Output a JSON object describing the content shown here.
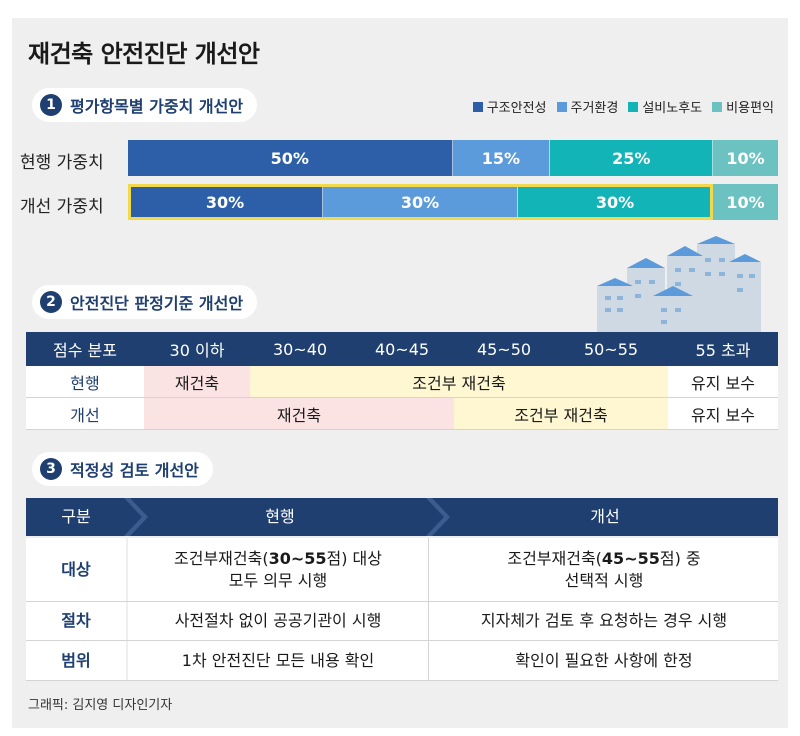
{
  "title": "재건축 안전진단 개선안",
  "section1": {
    "num": "1",
    "title": "평가항목별 가중치 개선안",
    "legend": [
      {
        "label": "구조안전성",
        "color": "#2d5fa8"
      },
      {
        "label": "주거환경",
        "color": "#5b9bdc"
      },
      {
        "label": "설비노후도",
        "color": "#12b4b8"
      },
      {
        "label": "비용편익",
        "color": "#6cc2c0"
      }
    ]
  },
  "chart_data": {
    "type": "bar",
    "orientation": "horizontal-stacked-100",
    "categories": [
      "현행 가중치",
      "개선 가중치"
    ],
    "series": [
      {
        "name": "구조안전성",
        "values": [
          50,
          30
        ],
        "labels": [
          "50%",
          "30%"
        ],
        "color": "#2d5fa8"
      },
      {
        "name": "주거환경",
        "values": [
          15,
          30
        ],
        "labels": [
          "15%",
          "30%"
        ],
        "color": "#5b9bdc"
      },
      {
        "name": "설비노후도",
        "values": [
          25,
          30
        ],
        "labels": [
          "25%",
          "30%"
        ],
        "color": "#12b4b8"
      },
      {
        "name": "비용편익",
        "values": [
          10,
          10
        ],
        "labels": [
          "10%",
          "10%"
        ],
        "color": "#6cc2c0"
      }
    ],
    "highlight_row": 1,
    "highlight_color": "#f2d84b"
  },
  "section2": {
    "num": "2",
    "title": "안전진단 판정기준 개선안",
    "header": [
      "점수 분포",
      "30 이하",
      "30~40",
      "40~45",
      "45~50",
      "50~55",
      "55 초과"
    ],
    "rows": [
      {
        "label": "현행",
        "cells": [
          {
            "text": "재건축",
            "span": 1,
            "style": "pink"
          },
          {
            "text": "조건부 재건축",
            "span": 4,
            "style": "yel"
          },
          {
            "text": "유지 보수",
            "span": 1,
            "style": "wht"
          }
        ]
      },
      {
        "label": "개선",
        "cells": [
          {
            "text": "재건축",
            "span": 3,
            "style": "pink"
          },
          {
            "text": "조건부 재건축",
            "span": 2,
            "style": "yel"
          },
          {
            "text": "유지 보수",
            "span": 1,
            "style": "wht"
          }
        ]
      }
    ]
  },
  "section3": {
    "num": "3",
    "title": "적정성 검토 개선안",
    "header": [
      "구분",
      "현행",
      "개선"
    ],
    "rows": [
      {
        "label": "대상",
        "current": [
          "조건부재건축(",
          "30~55",
          "점) 대상",
          "모두 의무 시행"
        ],
        "improved": [
          "조건부재건축(",
          "45~55",
          "점) 중",
          "선택적 시행"
        ]
      },
      {
        "label": "절차",
        "current": [
          "사전절차 없이 공공기관이 시행"
        ],
        "improved": [
          "지자체가 검토 후 요청하는 경우 시행"
        ]
      },
      {
        "label": "범위",
        "current": [
          "1차 안전진단 모든 내용 확인"
        ],
        "improved": [
          "확인이 필요한 사항에 한정"
        ]
      }
    ]
  },
  "credit": "그래픽: 김지영 디자인기자"
}
